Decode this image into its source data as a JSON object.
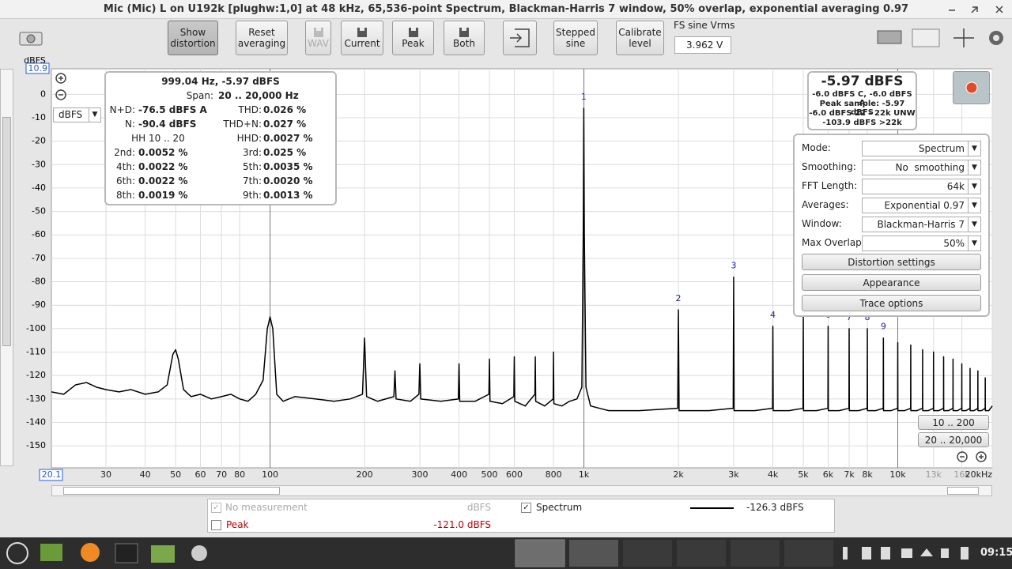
{
  "window": {
    "title": "Mic (Mic) L on U192k [plughw:1,0] at 48 kHz, 65,536-point Spectrum, Blackman-Harris 7 window, 50% overlap, exponential averaging 0.97"
  },
  "toolbar": {
    "buttons": [
      "Show distortion",
      "Reset averaging",
      "WAV",
      "Current",
      "Peak",
      "Both",
      "Stepped sine",
      "Calibrate level"
    ],
    "fs_label": "FS sine Vrms",
    "fs_value": "3.962 V"
  },
  "chart_data": {
    "type": "line",
    "y_unit": "dBFS",
    "y_unit_select": "dBFS",
    "log_x": true,
    "grid": true,
    "xlim": [
      20.1,
      20000
    ],
    "ylim": [
      -159.4,
      10.9
    ],
    "xticks": [
      30,
      40,
      50,
      60,
      70,
      80,
      100,
      200,
      300,
      400,
      500,
      600,
      800,
      {
        "value": 1000,
        "label": "1k"
      },
      {
        "value": 2000,
        "label": "2k"
      },
      {
        "value": 3000,
        "label": "3k"
      },
      {
        "value": 4000,
        "label": "4k"
      },
      {
        "value": 5000,
        "label": "5k"
      },
      {
        "value": 6000,
        "label": "6k"
      },
      {
        "value": 7000,
        "label": "7k"
      },
      {
        "value": 8000,
        "label": "8k"
      },
      {
        "value": 10000,
        "label": "10k"
      },
      {
        "value": 13000,
        "label": "13k"
      },
      {
        "value": 16000,
        "label": "16k"
      },
      {
        "value": 20000,
        "label": "20kHz"
      }
    ],
    "yticks": [
      0,
      -10,
      -20,
      -30,
      -40,
      -50,
      -60,
      -70,
      -80,
      -90,
      -100,
      -110,
      -120,
      -130,
      -140,
      -150
    ],
    "x": [
      20.1,
      22,
      24,
      26,
      28,
      30,
      33,
      36,
      40,
      44,
      47,
      49,
      50,
      51,
      53,
      56,
      60,
      65,
      70,
      75,
      80,
      85,
      90,
      95,
      98,
      100,
      102,
      105,
      110,
      120,
      140,
      160,
      180,
      197,
      200,
      203,
      220,
      248,
      250,
      252,
      280,
      298,
      300,
      302,
      350,
      398,
      400,
      402,
      450,
      498,
      500,
      502,
      550,
      598,
      600,
      602,
      650,
      698,
      700,
      702,
      750,
      798,
      800,
      802,
      850,
      900,
      950,
      985,
      995,
      999.04,
      1003,
      1015,
      1050,
      1200,
      1500,
      1990,
      2000,
      2010,
      2500,
      2990,
      3000,
      3010,
      3500,
      3990,
      4000,
      4010,
      4500,
      4990,
      5000,
      5010,
      5500,
      5990,
      6000,
      6010,
      6500,
      6990,
      7000,
      7010,
      7500,
      7990,
      8000,
      8010,
      8500,
      8990,
      9000,
      9010,
      9500,
      9990,
      10000,
      10010,
      10500,
      10990,
      11000,
      11010,
      11500,
      11990,
      12000,
      12010,
      12500,
      12990,
      13000,
      13010,
      13500,
      13990,
      14000,
      14010,
      14500,
      14990,
      15000,
      15010,
      15500,
      15990,
      16000,
      16010,
      16500,
      16990,
      17000,
      17010,
      17500,
      17990,
      18000,
      18010,
      18500,
      18990,
      19000,
      19010,
      19500,
      20000
    ],
    "series": [
      {
        "name": "Spectrum",
        "color": "#000000",
        "values": [
          -127,
          -128,
          -124,
          -123,
          -125,
          -126,
          -127,
          -126,
          -128,
          -127,
          -124,
          -111,
          -109,
          -113,
          -126,
          -129,
          -128,
          -130,
          -129,
          -128,
          -130,
          -131,
          -128,
          -122,
          -100,
          -95,
          -100,
          -128,
          -131,
          -129,
          -130,
          -131,
          -130,
          -128,
          -104,
          -129,
          -131,
          -129,
          -118,
          -130,
          -131,
          -128,
          -115,
          -130,
          -131,
          -130,
          -115,
          -131,
          -131,
          -128,
          -113,
          -131,
          -132,
          -129,
          -112,
          -131,
          -133,
          -128,
          -112,
          -131,
          -133,
          -130,
          -110,
          -132,
          -133,
          -131,
          -130,
          -125,
          -60,
          -5.97,
          -60,
          -125,
          -133,
          -135,
          -135,
          -134,
          -92,
          -135,
          -135,
          -134,
          -78,
          -135,
          -135,
          -134,
          -99,
          -135,
          -135,
          -134,
          -94,
          -135,
          -135,
          -134,
          -99,
          -135,
          -135,
          -134,
          -100,
          -135,
          -135,
          -134,
          -100,
          -135,
          -135,
          -134,
          -104,
          -135,
          -135,
          -134,
          -106,
          -135,
          -135,
          -134,
          -107,
          -135,
          -135,
          -134,
          -109,
          -135,
          -135,
          -134,
          -110,
          -135,
          -135,
          -134,
          -112,
          -135,
          -135,
          -134,
          -113,
          -135,
          -135,
          -134,
          -115,
          -135,
          -135,
          -134,
          -117,
          -135,
          -135,
          -134,
          -118,
          -135,
          -135,
          -134,
          -121,
          -135,
          -135,
          -133
        ]
      }
    ],
    "markers": [
      {
        "label": "1",
        "x": 999.04,
        "y": -5.97
      },
      {
        "label": "2",
        "x": 2000,
        "y": -92
      },
      {
        "label": "3",
        "x": 3000,
        "y": -78
      },
      {
        "label": "4",
        "x": 4000,
        "y": -99
      },
      {
        "label": "6",
        "x": 6000,
        "y": -99
      },
      {
        "label": "7",
        "x": 7000,
        "y": -100
      },
      {
        "label": "8",
        "x": 8000,
        "y": -100
      },
      {
        "label": "9",
        "x": 9000,
        "y": -104
      }
    ]
  },
  "readout": {
    "headline": "999.04 Hz, -5.97 dBFS",
    "span_label": "Span:",
    "span": "20 .. 20,000 Hz",
    "hh": "HH 10 .. 20",
    "rows": [
      [
        "N+D:",
        "-76.5 dBFS A",
        "THD:",
        "0.026 %"
      ],
      [
        "N:",
        "-90.4 dBFS",
        "THD+N:",
        "0.027 %"
      ],
      [
        "",
        "",
        "HHD:",
        "0.0027 %"
      ],
      [
        "2nd:",
        "0.0052 %",
        "3rd:",
        "0.025 %"
      ],
      [
        "4th:",
        "0.0022 %",
        "5th:",
        "0.0035 %"
      ],
      [
        "6th:",
        "0.0022 %",
        "7th:",
        "0.0020 %"
      ],
      [
        "8th:",
        "0.0019 %",
        "9th:",
        "0.0013 %"
      ]
    ]
  },
  "level_meter": {
    "value": "-5.97 dBFS",
    "lines": [
      "-6.0 dBFS C, -6.0 dBFS A",
      "Peak sample: -5.97 dBFS",
      "-6.0 dBFS 22 - 22k UNW",
      "-103.9 dBFS >22k"
    ]
  },
  "settings": {
    "rows": [
      [
        "Mode:",
        "Spectrum"
      ],
      [
        "Smoothing:",
        "No  smoothing"
      ],
      [
        "FFT Length:",
        "64k"
      ],
      [
        "Averages:",
        "Exponential 0.97"
      ],
      [
        "Window:",
        "Blackman-Harris 7"
      ],
      [
        "Max Overlap:",
        "50%"
      ]
    ],
    "buttons": [
      "Distortion settings",
      "Appearance",
      "Trace options"
    ]
  },
  "range_buttons": [
    "10 .. 200",
    "20 .. 20,000"
  ],
  "legend": {
    "no_measurement": "No measurement",
    "no_measurement_unit": "dBFS",
    "spectrum_value": "-126.3 dBFS",
    "peak": "Peak",
    "peak_value": "-121.0 dBFS"
  },
  "taskbar": {
    "clock": "09:15"
  }
}
